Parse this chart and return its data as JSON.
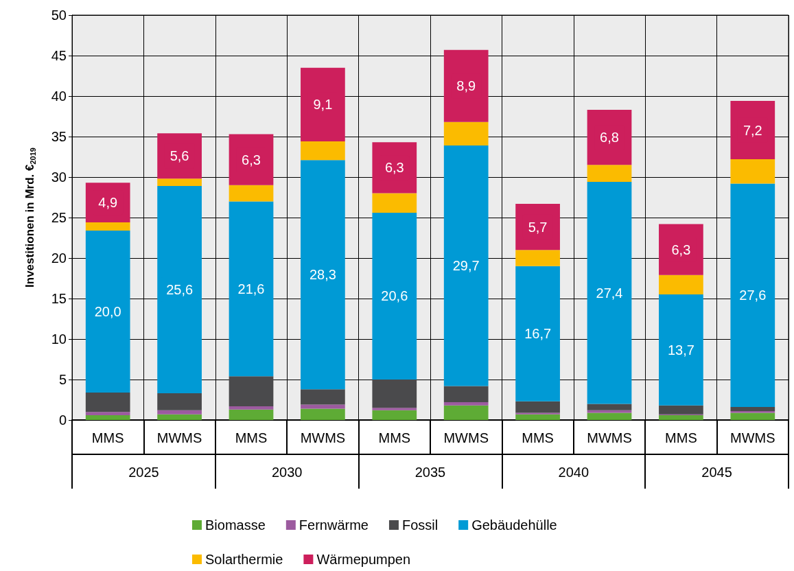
{
  "chart_data": {
    "type": "bar",
    "stacked": true,
    "ylabel": "Investitionen in Mrd. €$_{2019}$",
    "categories": [
      "MMS",
      "MWMS",
      "MMS",
      "MWMS",
      "MMS",
      "MWMS",
      "MMS",
      "MWMS",
      "MMS",
      "MWMS"
    ],
    "annotations": [
      "2025",
      "2030",
      "2035",
      "2040",
      "2045"
    ],
    "ylim": [
      0,
      50
    ],
    "yticks": [
      0,
      5,
      10,
      15,
      20,
      25,
      30,
      35,
      40,
      45,
      50
    ],
    "grid": true,
    "legend": "bottom",
    "series": [
      {
        "name": "Biomasse",
        "color": "#5eab35",
        "values": [
          0.6,
          0.7,
          1.3,
          1.4,
          1.2,
          1.8,
          0.7,
          0.9,
          0.6,
          0.9
        ]
      },
      {
        "name": "Fernwärme",
        "color": "#9c5b9f",
        "values": [
          0.4,
          0.5,
          0.4,
          0.5,
          0.3,
          0.4,
          0.2,
          0.3,
          0.1,
          0.2
        ]
      },
      {
        "name": "Fossil",
        "color": "#4a4a4c",
        "values": [
          2.4,
          2.1,
          3.7,
          1.9,
          3.5,
          2.0,
          1.4,
          0.8,
          1.1,
          0.5
        ]
      },
      {
        "name": "Gebäudehülle",
        "color": "#009ad5",
        "values": [
          20.0,
          25.6,
          21.6,
          28.3,
          20.6,
          29.7,
          16.7,
          27.4,
          13.7,
          27.6
        ],
        "value_labels": [
          "20,0",
          "25,6",
          "21,6",
          "28,3",
          "20,6",
          "29,7",
          "16,7",
          "27,4",
          "13,7",
          "27,6"
        ]
      },
      {
        "name": "Solarthermie",
        "color": "#fbbb00",
        "values": [
          1.0,
          0.9,
          2.0,
          2.3,
          2.4,
          2.9,
          2.0,
          2.1,
          2.4,
          3.0
        ]
      },
      {
        "name": "Wärmepumpen",
        "color": "#cd1f5c",
        "values": [
          4.9,
          5.6,
          6.3,
          9.1,
          6.3,
          8.9,
          5.7,
          6.8,
          6.3,
          7.2
        ],
        "value_labels": [
          "4,9",
          "5,6",
          "6,3",
          "9,1",
          "6,3",
          "8,9",
          "5,7",
          "6,8",
          "6,3",
          "7,2"
        ]
      }
    ]
  }
}
